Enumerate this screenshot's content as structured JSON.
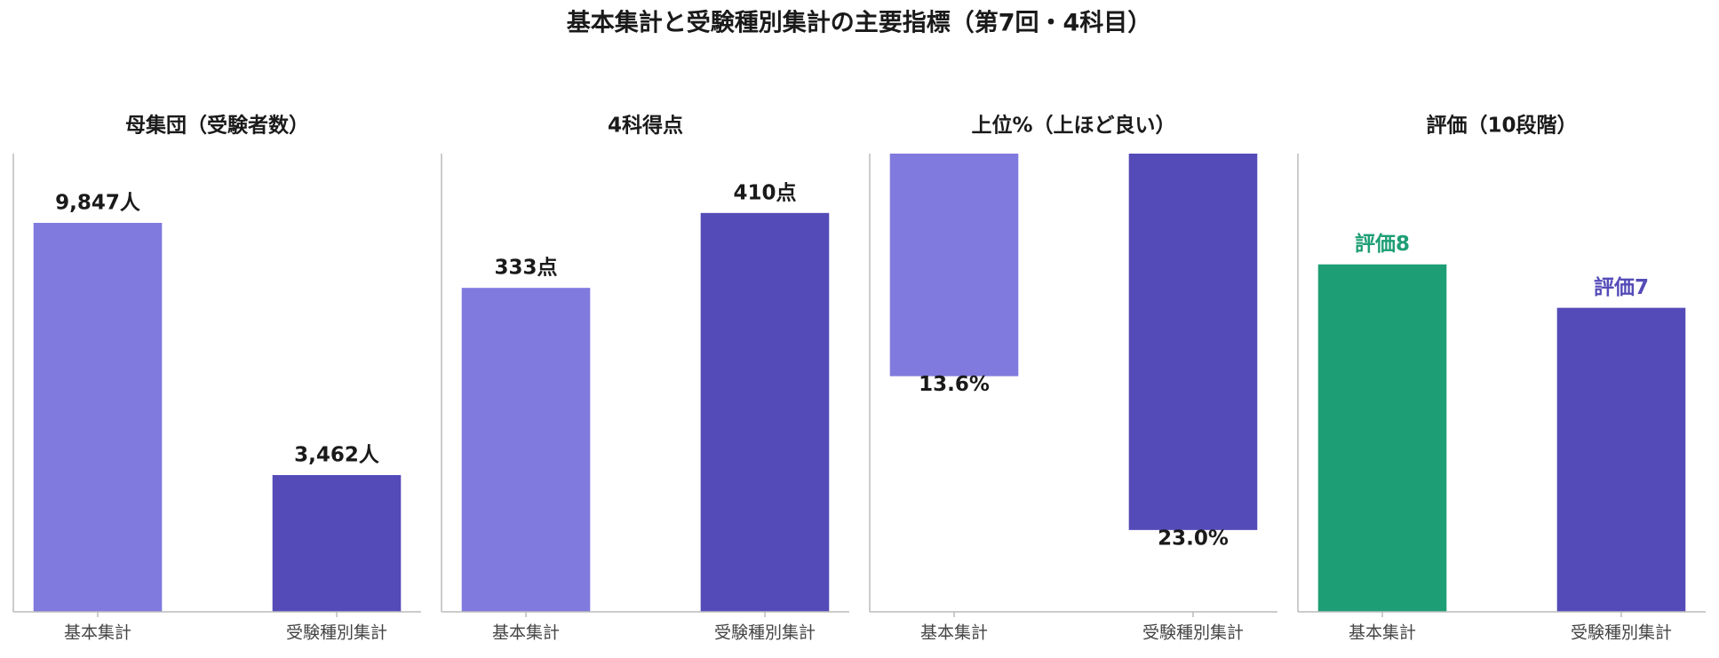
{
  "title": "基本集計と受験種別集計の主要指標（第7回・4科目）",
  "chart_data": [
    {
      "type": "bar",
      "title": "母集団（受験者数）",
      "categories": [
        "基本集計",
        "受験種別集計"
      ],
      "values": [
        9847,
        3462
      ],
      "value_labels": [
        "9,847人",
        "3,462人"
      ],
      "colors": [
        "#8079de",
        "#544bb8"
      ],
      "ylim": [
        0,
        11600
      ]
    },
    {
      "type": "bar",
      "title": "4科得点",
      "categories": [
        "基本集計",
        "受験種別集計"
      ],
      "values": [
        333,
        410
      ],
      "value_labels": [
        "333点",
        "410点"
      ],
      "colors": [
        "#8079de",
        "#544bb8"
      ],
      "ylim": [
        0,
        471
      ]
    },
    {
      "type": "bar",
      "title": "上位%（上ほど良い）",
      "categories": [
        "基本集計",
        "受験種別集計"
      ],
      "values": [
        13.6,
        23.0
      ],
      "value_labels": [
        "13.6%",
        "23.0%"
      ],
      "colors": [
        "#8079de",
        "#544bb8"
      ],
      "ylim": [
        0,
        28
      ],
      "inverted": true
    },
    {
      "type": "bar",
      "title": "評価（10段階）",
      "categories": [
        "基本集計",
        "受験種別集計"
      ],
      "values": [
        8,
        7
      ],
      "value_labels": [
        "評価8",
        "評価7"
      ],
      "colors": [
        "#1e9e75",
        "#544bb8"
      ],
      "ylim": [
        0,
        10.55
      ],
      "colored_labels": true
    }
  ]
}
